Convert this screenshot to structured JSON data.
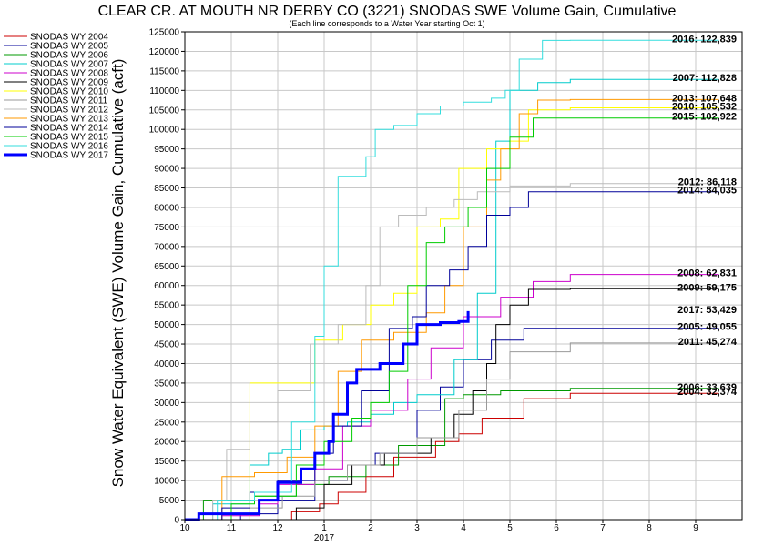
{
  "chart_data": {
    "type": "line",
    "title": "CLEAR CR. AT MOUTH NR DERBY CO (3221) SNODAS SWE Volume Gain, Cumulative",
    "subtitle": "(Each line corresponds to a Water Year starting Oct 1)",
    "ylabel": "Snow Water Equivalent (SWE) Volume Gain, Cumulative (acft)",
    "xlabel": "",
    "ylim": [
      0,
      125000
    ],
    "yticks": [
      0,
      5000,
      10000,
      15000,
      20000,
      25000,
      30000,
      35000,
      40000,
      45000,
      50000,
      55000,
      60000,
      65000,
      70000,
      75000,
      80000,
      85000,
      90000,
      95000,
      100000,
      105000,
      110000,
      115000,
      120000,
      125000
    ],
    "xlim": [
      0,
      12
    ],
    "xticks": [
      {
        "x": 0,
        "label": "10"
      },
      {
        "x": 1,
        "label": "11"
      },
      {
        "x": 2,
        "label": "12"
      },
      {
        "x": 3,
        "label": "1"
      },
      {
        "x": 4,
        "label": "2"
      },
      {
        "x": 5,
        "label": "3"
      },
      {
        "x": 6,
        "label": "4"
      },
      {
        "x": 7,
        "label": "5"
      },
      {
        "x": 8,
        "label": "6"
      },
      {
        "x": 9,
        "label": "7"
      },
      {
        "x": 10,
        "label": "8"
      },
      {
        "x": 11,
        "label": "9"
      }
    ],
    "year_label": "2017",
    "grid": true,
    "legend_position": "left",
    "series": [
      {
        "name": "SNODAS WY 2004",
        "color": "#cc0000",
        "width": 1,
        "end_label": "2004: 32,374",
        "points": [
          [
            0,
            0
          ],
          [
            1.5,
            0
          ],
          [
            2.3,
            2000
          ],
          [
            2.9,
            4000
          ],
          [
            3.3,
            7000
          ],
          [
            3.9,
            11000
          ],
          [
            4.5,
            16000
          ],
          [
            5.4,
            20000
          ],
          [
            5.9,
            22000
          ],
          [
            6.4,
            26000
          ],
          [
            7.3,
            31000
          ],
          [
            8.3,
            32374
          ],
          [
            11.5,
            32374
          ]
        ]
      },
      {
        "name": "SNODAS WY 2005",
        "color": "#000099",
        "width": 1,
        "end_label": "2005: 49,055",
        "points": [
          [
            0,
            0
          ],
          [
            1.2,
            1500
          ],
          [
            2.0,
            5000
          ],
          [
            2.8,
            10000
          ],
          [
            3.5,
            14000
          ],
          [
            4.1,
            17000
          ],
          [
            5.0,
            28000
          ],
          [
            5.5,
            34000
          ],
          [
            6.0,
            41000
          ],
          [
            6.6,
            46000
          ],
          [
            7.3,
            49055
          ],
          [
            11.5,
            49055
          ]
        ]
      },
      {
        "name": "SNODAS WY 2006",
        "color": "#009900",
        "width": 1,
        "end_label": "2006: 33,639",
        "points": [
          [
            0,
            0
          ],
          [
            0.4,
            5000
          ],
          [
            1.5,
            6000
          ],
          [
            2.4,
            9000
          ],
          [
            3.1,
            11000
          ],
          [
            3.9,
            14000
          ],
          [
            4.6,
            19000
          ],
          [
            5.6,
            31000
          ],
          [
            6.0,
            32000
          ],
          [
            6.8,
            33000
          ],
          [
            8.3,
            33639
          ],
          [
            11.5,
            33639
          ]
        ]
      },
      {
        "name": "SNODAS WY 2007",
        "color": "#00cccc",
        "width": 1,
        "end_label": "2007: 112,828",
        "points": [
          [
            0,
            0
          ],
          [
            0.6,
            4000
          ],
          [
            1.4,
            14000
          ],
          [
            1.8,
            17000
          ],
          [
            2.1,
            18000
          ],
          [
            2.5,
            23000
          ],
          [
            3.0,
            24000
          ],
          [
            3.5,
            25000
          ],
          [
            4.0,
            27000
          ],
          [
            4.5,
            30000
          ],
          [
            5.0,
            32000
          ],
          [
            5.8,
            41000
          ],
          [
            6.3,
            58000
          ],
          [
            6.7,
            97000
          ],
          [
            7.0,
            110000
          ],
          [
            7.6,
            112000
          ],
          [
            8.3,
            112828
          ],
          [
            11.5,
            112828
          ]
        ]
      },
      {
        "name": "SNODAS WY 2008",
        "color": "#cc00cc",
        "width": 1,
        "end_label": "2008: 62,831",
        "points": [
          [
            0,
            0
          ],
          [
            0.8,
            1000
          ],
          [
            1.6,
            4000
          ],
          [
            2.0,
            9000
          ],
          [
            2.8,
            13000
          ],
          [
            3.4,
            24000
          ],
          [
            4.0,
            28000
          ],
          [
            4.8,
            36000
          ],
          [
            5.3,
            44000
          ],
          [
            6.0,
            52000
          ],
          [
            6.8,
            57000
          ],
          [
            7.5,
            61000
          ],
          [
            8.3,
            62831
          ],
          [
            11.5,
            62831
          ]
        ]
      },
      {
        "name": "SNODAS WY 2009",
        "color": "#000000",
        "width": 1,
        "end_label": "2009: 59,175",
        "points": [
          [
            0,
            0
          ],
          [
            2.4,
            3000
          ],
          [
            3.0,
            9000
          ],
          [
            3.6,
            14000
          ],
          [
            4.3,
            17000
          ],
          [
            5.3,
            21000
          ],
          [
            5.8,
            27000
          ],
          [
            6.2,
            33000
          ],
          [
            6.5,
            40000
          ],
          [
            6.7,
            50000
          ],
          [
            7.0,
            55000
          ],
          [
            7.4,
            59000
          ],
          [
            8.3,
            59175
          ],
          [
            11.5,
            59175
          ]
        ]
      },
      {
        "name": "SNODAS WY 2010",
        "color": "#ffff00",
        "width": 1,
        "end_label": "2010: 105,532",
        "points": [
          [
            0,
            0
          ],
          [
            1.4,
            35000
          ],
          [
            2.0,
            35000
          ],
          [
            2.8,
            46000
          ],
          [
            3.4,
            50000
          ],
          [
            4.0,
            55000
          ],
          [
            4.5,
            58000
          ],
          [
            5.0,
            75000
          ],
          [
            5.5,
            77000
          ],
          [
            5.9,
            90000
          ],
          [
            6.5,
            95000
          ],
          [
            7.0,
            97000
          ],
          [
            7.4,
            105000
          ],
          [
            8.3,
            105532
          ],
          [
            11.5,
            105532
          ]
        ]
      },
      {
        "name": "SNODAS WY 2011",
        "color": "#999999",
        "width": 1,
        "end_label": "2011: 45,274",
        "points": [
          [
            0,
            0
          ],
          [
            1.4,
            3000
          ],
          [
            2.1,
            6000
          ],
          [
            2.8,
            10000
          ],
          [
            3.5,
            14000
          ],
          [
            4.2,
            17000
          ],
          [
            5.0,
            21000
          ],
          [
            5.9,
            28000
          ],
          [
            6.5,
            36000
          ],
          [
            7.0,
            43000
          ],
          [
            8.3,
            45274
          ],
          [
            11.5,
            45274
          ]
        ]
      },
      {
        "name": "SNODAS WY 2012",
        "color": "#bbbbbb",
        "width": 1,
        "end_label": "2012: 86,118",
        "points": [
          [
            0,
            0
          ],
          [
            0.6,
            5000
          ],
          [
            0.9,
            18000
          ],
          [
            1.4,
            25000
          ],
          [
            2.0,
            33000
          ],
          [
            2.7,
            45000
          ],
          [
            3.3,
            50000
          ],
          [
            3.9,
            60000
          ],
          [
            4.2,
            75000
          ],
          [
            4.6,
            78000
          ],
          [
            5.2,
            80000
          ],
          [
            5.8,
            82000
          ],
          [
            6.3,
            84000
          ],
          [
            7.0,
            85500
          ],
          [
            8.3,
            86118
          ],
          [
            11.5,
            86118
          ]
        ]
      },
      {
        "name": "SNODAS WY 2013",
        "color": "#ff9900",
        "width": 1,
        "end_label": "2013: 107,648",
        "points": [
          [
            0,
            0
          ],
          [
            0.8,
            11000
          ],
          [
            1.5,
            12000
          ],
          [
            2.2,
            16000
          ],
          [
            2.8,
            24000
          ],
          [
            3.3,
            38000
          ],
          [
            3.8,
            46000
          ],
          [
            4.5,
            48000
          ],
          [
            5.2,
            53000
          ],
          [
            5.6,
            60000
          ],
          [
            6.0,
            75000
          ],
          [
            6.5,
            87000
          ],
          [
            6.8,
            95000
          ],
          [
            7.2,
            104000
          ],
          [
            7.6,
            107500
          ],
          [
            8.3,
            107648
          ],
          [
            11.5,
            107648
          ]
        ]
      },
      {
        "name": "SNODAS WY 2014",
        "color": "#000099",
        "width": 1,
        "end_label": "2014: 84,035",
        "points": [
          [
            0,
            0
          ],
          [
            0.8,
            3000
          ],
          [
            1.4,
            7000
          ],
          [
            2.0,
            10000
          ],
          [
            2.8,
            17000
          ],
          [
            3.2,
            24000
          ],
          [
            3.8,
            33000
          ],
          [
            4.4,
            49000
          ],
          [
            4.9,
            52000
          ],
          [
            5.2,
            60000
          ],
          [
            5.7,
            64000
          ],
          [
            6.1,
            70000
          ],
          [
            6.5,
            78000
          ],
          [
            7.0,
            80000
          ],
          [
            7.4,
            84000
          ],
          [
            8.3,
            84035
          ],
          [
            11.5,
            84035
          ]
        ]
      },
      {
        "name": "SNODAS WY 2015",
        "color": "#00cc00",
        "width": 1,
        "end_label": "2015: 102,922",
        "points": [
          [
            0,
            0
          ],
          [
            1.0,
            4000
          ],
          [
            1.5,
            6000
          ],
          [
            2.4,
            14000
          ],
          [
            3.0,
            20000
          ],
          [
            3.6,
            26000
          ],
          [
            4.0,
            30000
          ],
          [
            4.4,
            38000
          ],
          [
            4.8,
            60000
          ],
          [
            5.2,
            71000
          ],
          [
            5.6,
            75000
          ],
          [
            6.1,
            80000
          ],
          [
            6.5,
            90000
          ],
          [
            7.0,
            98000
          ],
          [
            7.5,
            102900
          ],
          [
            8.3,
            102922
          ],
          [
            11.5,
            102922
          ]
        ]
      },
      {
        "name": "SNODAS WY 2016",
        "color": "#33dddd",
        "width": 1,
        "end_label": "2016: 122,839",
        "points": [
          [
            0,
            0
          ],
          [
            0.7,
            5000
          ],
          [
            1.5,
            7000
          ],
          [
            2.3,
            25000
          ],
          [
            2.8,
            47000
          ],
          [
            3.0,
            65000
          ],
          [
            3.3,
            88000
          ],
          [
            3.9,
            93000
          ],
          [
            4.1,
            100000
          ],
          [
            4.5,
            101000
          ],
          [
            5.0,
            104000
          ],
          [
            5.5,
            106000
          ],
          [
            6.0,
            107000
          ],
          [
            6.6,
            108000
          ],
          [
            6.9,
            110000
          ],
          [
            7.2,
            118000
          ],
          [
            7.7,
            122800
          ],
          [
            8.3,
            122839
          ],
          [
            11.5,
            122839
          ]
        ]
      },
      {
        "name": "SNODAS WY 2017",
        "color": "#0000ff",
        "width": 3,
        "end_label": "2017: 53,429",
        "points": [
          [
            0,
            0
          ],
          [
            0.3,
            1500
          ],
          [
            1.0,
            1500
          ],
          [
            1.6,
            5000
          ],
          [
            2.0,
            9500
          ],
          [
            2.5,
            13000
          ],
          [
            2.8,
            17000
          ],
          [
            3.1,
            20000
          ],
          [
            3.2,
            27000
          ],
          [
            3.5,
            35000
          ],
          [
            3.7,
            38500
          ],
          [
            4.2,
            40000
          ],
          [
            4.7,
            45000
          ],
          [
            5.0,
            50000
          ],
          [
            5.5,
            50500
          ],
          [
            5.9,
            50800
          ],
          [
            6.1,
            53429
          ]
        ]
      }
    ]
  }
}
